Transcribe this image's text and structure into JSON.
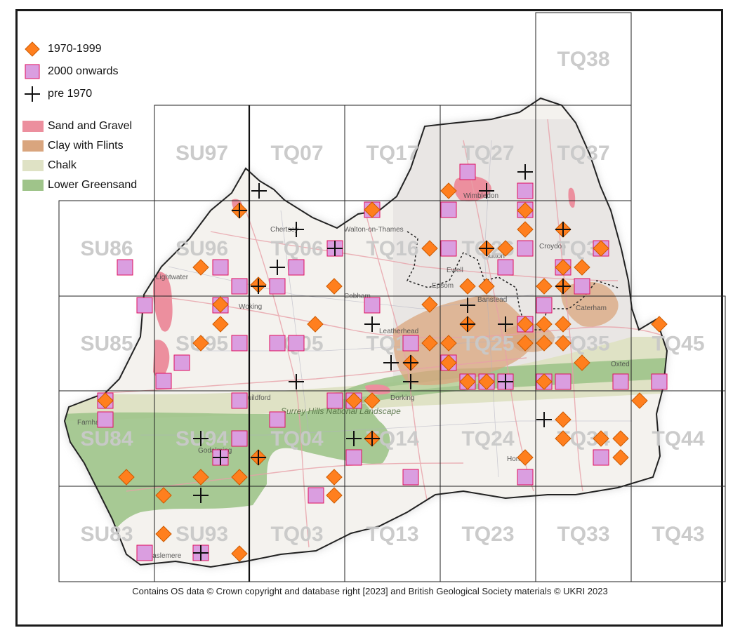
{
  "legend": {
    "records": [
      {
        "label": "1970-1999",
        "symbol": "diamond",
        "color": "#ff7f1e",
        "stroke": "#cc5a00"
      },
      {
        "label": "2000 onwards",
        "symbol": "square",
        "color": "#da9ee0",
        "stroke": "#e0105e"
      },
      {
        "label": "pre 1970",
        "symbol": "cross",
        "color": "#111111"
      }
    ],
    "geology": [
      {
        "label": "Sand and Gravel",
        "color": "#ec8f9e"
      },
      {
        "label": "Clay with Flints",
        "color": "#d9a57e"
      },
      {
        "label": "Chalk",
        "color": "#dfe2c5"
      },
      {
        "label": "Lower Greensand",
        "color": "#9fc48a"
      }
    ]
  },
  "grid": {
    "columns": [
      "SU8",
      "SU9",
      "TQ0",
      "TQ1",
      "TQ2",
      "TQ3",
      "TQ4"
    ],
    "rows": [
      "8",
      "7",
      "6",
      "5",
      "4",
      "3"
    ],
    "labels": [
      {
        "text": "TQ38",
        "col": 5,
        "row": 0
      },
      {
        "text": "SU97",
        "col": 1,
        "row": 1
      },
      {
        "text": "TQ07",
        "col": 2,
        "row": 1
      },
      {
        "text": "TQ17",
        "col": 3,
        "row": 1
      },
      {
        "text": "TQ27",
        "col": 4,
        "row": 1
      },
      {
        "text": "TQ37",
        "col": 5,
        "row": 1
      },
      {
        "text": "SU86",
        "col": 0,
        "row": 2
      },
      {
        "text": "SU96",
        "col": 1,
        "row": 2
      },
      {
        "text": "TQ06",
        "col": 2,
        "row": 2
      },
      {
        "text": "TQ16",
        "col": 3,
        "row": 2
      },
      {
        "text": "TQ26",
        "col": 4,
        "row": 2
      },
      {
        "text": "TQ36",
        "col": 5,
        "row": 2
      },
      {
        "text": "SU85",
        "col": 0,
        "row": 3
      },
      {
        "text": "SU95",
        "col": 1,
        "row": 3
      },
      {
        "text": "TQ05",
        "col": 2,
        "row": 3
      },
      {
        "text": "TQ15",
        "col": 3,
        "row": 3
      },
      {
        "text": "TQ25",
        "col": 4,
        "row": 3
      },
      {
        "text": "TQ35",
        "col": 5,
        "row": 3
      },
      {
        "text": "TQ45",
        "col": 6,
        "row": 3
      },
      {
        "text": "SU84",
        "col": 0,
        "row": 4
      },
      {
        "text": "SU94",
        "col": 1,
        "row": 4
      },
      {
        "text": "TQ04",
        "col": 2,
        "row": 4
      },
      {
        "text": "TQ14",
        "col": 3,
        "row": 4
      },
      {
        "text": "TQ24",
        "col": 4,
        "row": 4
      },
      {
        "text": "TQ34",
        "col": 5,
        "row": 4
      },
      {
        "text": "TQ44",
        "col": 6,
        "row": 4
      },
      {
        "text": "SU83",
        "col": 0,
        "row": 5
      },
      {
        "text": "SU93",
        "col": 1,
        "row": 5
      },
      {
        "text": "TQ03",
        "col": 2,
        "row": 5
      },
      {
        "text": "TQ13",
        "col": 3,
        "row": 5
      },
      {
        "text": "TQ23",
        "col": 4,
        "row": 5
      },
      {
        "text": "TQ33",
        "col": 5,
        "row": 5
      },
      {
        "text": "TQ43",
        "col": 6,
        "row": 5
      }
    ]
  },
  "basemap_places": [
    "Lightwater",
    "Woking",
    "Chertsey",
    "Walton-on-Thames",
    "Cobham",
    "Leatherhead",
    "Ewell",
    "Epsom",
    "Banstead",
    "Croydon",
    "Wimbledon",
    "Sutton",
    "Caterham",
    "Oxted",
    "Dorking",
    "Guildford",
    "Godalming",
    "Haslemere",
    "Farnham",
    "Horley",
    "Surrey Hills National Landscape"
  ],
  "attribution": "Contains OS data  © Crown copyright and database right [2023] and British Geological Society materials © UKRI 2023"
}
